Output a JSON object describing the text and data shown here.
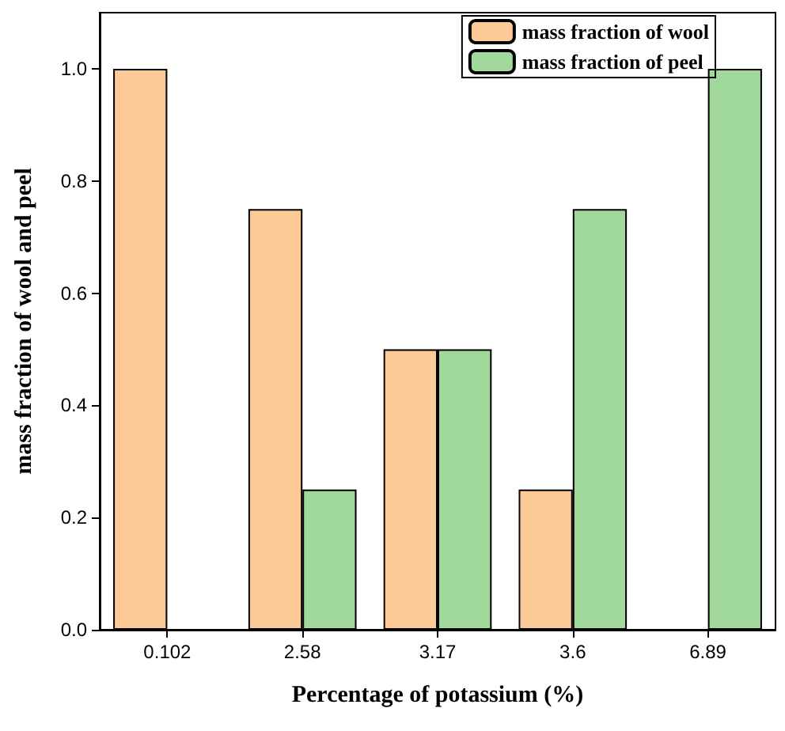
{
  "chart_data": {
    "type": "bar",
    "xlabel": "Percentage of potassium (%)",
    "ylabel": "mass fraction of wool and peel",
    "categories": [
      "0.102",
      "2.58",
      "3.17",
      "3.6",
      "6.89"
    ],
    "series": [
      {
        "name": "mass fraction of wool",
        "color": "#fdc996",
        "values": [
          1,
          0.75,
          0.5,
          0.25,
          0
        ]
      },
      {
        "name": "mass fraction of peel",
        "color": "#a0d99b",
        "values": [
          0,
          0.25,
          0.5,
          0.75,
          1
        ]
      }
    ],
    "ylim": [
      0,
      1.1
    ],
    "yticks": [
      {
        "value": 0,
        "label": "0.0"
      },
      {
        "value": 0.2,
        "label": "0.2"
      },
      {
        "value": 0.4,
        "label": "0.4"
      },
      {
        "value": 0.6,
        "label": "0.6"
      },
      {
        "value": 0.8,
        "label": "0.8"
      },
      {
        "value": 1,
        "label": "1.0"
      }
    ],
    "grid": false,
    "legend": "top right"
  }
}
